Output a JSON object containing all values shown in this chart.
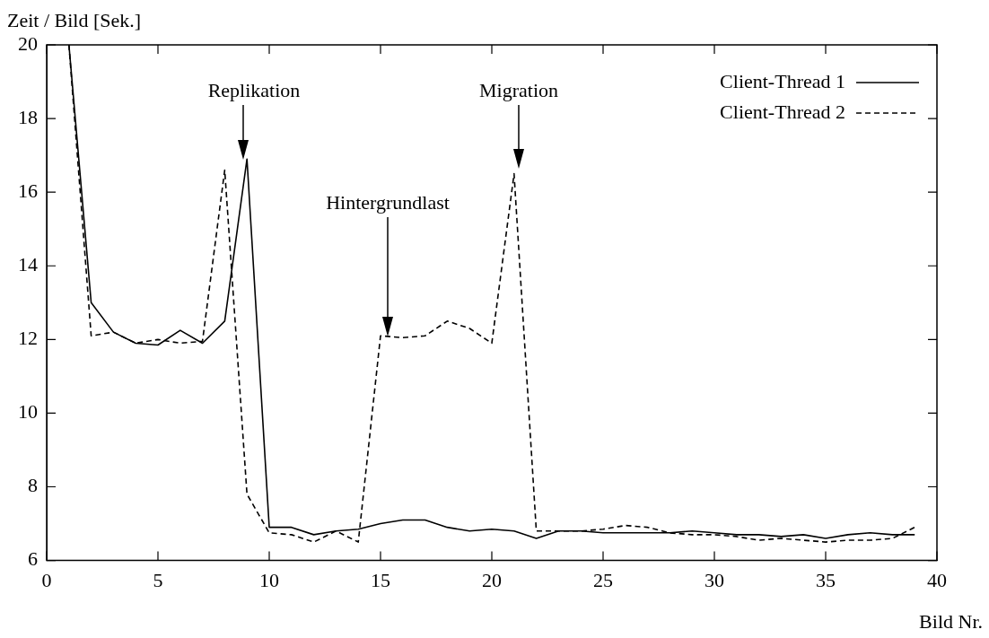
{
  "chart_data": {
    "type": "line",
    "xlabel": "Bild Nr.",
    "ylabel": "Zeit / Bild [Sek.]",
    "x": [
      1,
      2,
      3,
      4,
      5,
      6,
      7,
      8,
      9,
      10,
      11,
      12,
      13,
      14,
      15,
      16,
      17,
      18,
      19,
      20,
      21,
      22,
      23,
      24,
      25,
      26,
      27,
      28,
      29,
      30,
      31,
      32,
      33,
      34,
      35,
      36,
      37,
      38,
      39
    ],
    "series": [
      {
        "name": "Client-Thread 1",
        "color": "#000000",
        "line_style": "solid",
        "values": [
          20,
          13.0,
          12.2,
          11.9,
          11.85,
          12.25,
          11.9,
          12.5,
          16.9,
          6.9,
          6.9,
          6.7,
          6.8,
          6.85,
          7.0,
          7.1,
          7.1,
          6.9,
          6.8,
          6.85,
          6.8,
          6.6,
          6.8,
          6.8,
          6.75,
          6.75,
          6.75,
          6.75,
          6.8,
          6.75,
          6.7,
          6.7,
          6.65,
          6.7,
          6.6,
          6.7,
          6.75,
          6.7,
          6.7
        ]
      },
      {
        "name": "Client-Thread 2",
        "color": "#000000",
        "line_style": "dashed",
        "values": [
          20,
          12.1,
          12.2,
          11.9,
          12.0,
          11.9,
          11.95,
          16.6,
          7.8,
          6.75,
          6.7,
          6.5,
          6.8,
          6.5,
          12.1,
          12.05,
          12.1,
          12.5,
          12.3,
          11.9,
          16.5,
          6.8,
          6.8,
          6.8,
          6.85,
          6.95,
          6.9,
          6.75,
          6.7,
          6.7,
          6.65,
          6.55,
          6.6,
          6.55,
          6.5,
          6.55,
          6.55,
          6.6,
          6.9
        ]
      }
    ],
    "xlim": [
      0,
      40
    ],
    "xticks": [
      0,
      5,
      10,
      15,
      20,
      25,
      30,
      35,
      40
    ],
    "ylim": [
      6,
      20
    ],
    "yticks": [
      6,
      8,
      10,
      12,
      14,
      16,
      18,
      20
    ],
    "grid": false,
    "legend": "top right",
    "marker": "none",
    "annotations": [
      "Replikation",
      "Hintergrundlast",
      "Migration"
    ]
  }
}
